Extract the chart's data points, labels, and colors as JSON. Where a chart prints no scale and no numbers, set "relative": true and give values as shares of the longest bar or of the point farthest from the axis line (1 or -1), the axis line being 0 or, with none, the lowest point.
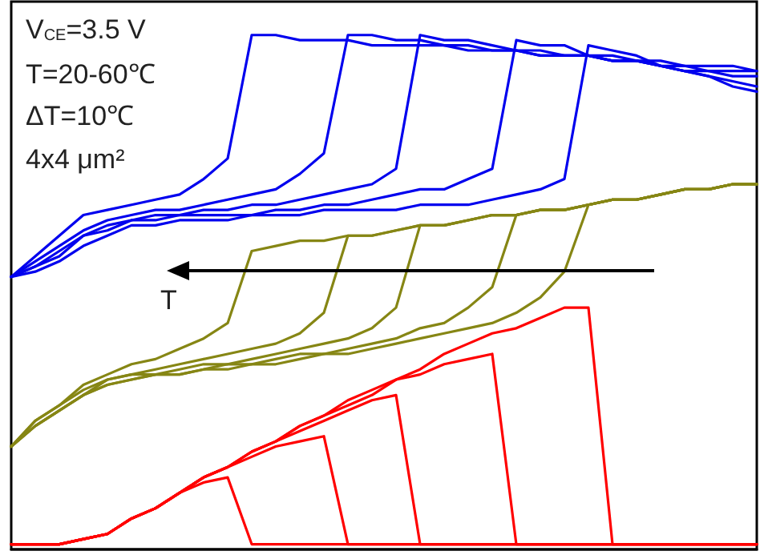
{
  "chart_data": {
    "type": "line",
    "relative": true,
    "marker": "none",
    "tick_labels": false,
    "categories": [
      null,
      null,
      null,
      null,
      null,
      null,
      null,
      null,
      null,
      null,
      null,
      null,
      null,
      null,
      null,
      null,
      null,
      null,
      null,
      null,
      null,
      null,
      null,
      null,
      null,
      null,
      null,
      null,
      null,
      null,
      null,
      null
    ],
    "series": [
      {
        "color": "#0000ee",
        "values": [
          0.53,
          0.57,
          0.61,
          0.65,
          0.66,
          0.67,
          0.68,
          0.69,
          0.72,
          0.76,
          1.0,
          1.0,
          0.99,
          0.99,
          0.99,
          0.98,
          0.98,
          0.98,
          0.98,
          0.97,
          0.97,
          0.97,
          0.96,
          0.96,
          0.96,
          0.95,
          0.95,
          0.95,
          0.94,
          0.94,
          0.94,
          0.93
        ]
      },
      {
        "color": "#0000ee",
        "values": [
          0.53,
          0.56,
          0.59,
          0.62,
          0.64,
          0.65,
          0.66,
          0.66,
          0.67,
          0.68,
          0.69,
          0.7,
          0.73,
          0.77,
          1.0,
          1.0,
          0.99,
          0.99,
          0.98,
          0.98,
          0.97,
          0.97,
          0.96,
          0.96,
          0.96,
          0.95,
          0.95,
          0.94,
          0.94,
          0.93,
          0.93,
          0.93
        ]
      },
      {
        "color": "#0000ee",
        "values": [
          0.53,
          0.55,
          0.58,
          0.61,
          0.63,
          0.64,
          0.65,
          0.65,
          0.66,
          0.66,
          0.67,
          0.67,
          0.68,
          0.69,
          0.7,
          0.71,
          0.74,
          1.0,
          0.99,
          0.99,
          0.98,
          0.97,
          0.97,
          0.96,
          0.96,
          0.95,
          0.95,
          0.94,
          0.93,
          0.93,
          0.92,
          0.92
        ]
      },
      {
        "color": "#0000ee",
        "values": [
          0.53,
          0.55,
          0.57,
          0.61,
          0.62,
          0.64,
          0.64,
          0.65,
          0.65,
          0.65,
          0.65,
          0.66,
          0.66,
          0.67,
          0.67,
          0.68,
          0.69,
          0.7,
          0.7,
          0.72,
          0.74,
          0.99,
          0.98,
          0.98,
          0.96,
          0.96,
          0.95,
          0.94,
          0.93,
          0.92,
          0.91,
          0.9
        ]
      },
      {
        "color": "#0000ee",
        "values": [
          0.53,
          0.54,
          0.56,
          0.59,
          0.61,
          0.63,
          0.63,
          0.64,
          0.64,
          0.64,
          0.65,
          0.65,
          0.65,
          0.66,
          0.66,
          0.66,
          0.66,
          0.67,
          0.67,
          0.67,
          0.68,
          0.69,
          0.7,
          0.72,
          0.98,
          0.97,
          0.96,
          0.94,
          0.93,
          0.92,
          0.9,
          0.89
        ]
      },
      {
        "color": "#868614",
        "values": [
          0.2,
          0.25,
          0.28,
          0.32,
          0.34,
          0.36,
          0.37,
          0.39,
          0.41,
          0.44,
          0.58,
          0.59,
          0.6,
          0.6,
          0.61,
          0.61,
          0.62,
          0.63,
          0.63,
          0.64,
          0.65,
          0.65,
          0.66,
          0.66,
          0.67,
          0.68,
          0.68,
          0.69,
          0.7,
          0.7,
          0.71,
          0.71
        ]
      },
      {
        "color": "#868614",
        "values": [
          0.2,
          0.25,
          0.28,
          0.31,
          0.33,
          0.34,
          0.35,
          0.36,
          0.37,
          0.38,
          0.39,
          0.4,
          0.42,
          0.46,
          0.61,
          0.61,
          0.62,
          0.63,
          0.63,
          0.64,
          0.65,
          0.65,
          0.66,
          0.66,
          0.67,
          0.68,
          0.68,
          0.69,
          0.7,
          0.7,
          0.71,
          0.71
        ]
      },
      {
        "color": "#868614",
        "values": [
          0.2,
          0.24,
          0.27,
          0.3,
          0.33,
          0.34,
          0.34,
          0.35,
          0.36,
          0.36,
          0.37,
          0.38,
          0.39,
          0.4,
          0.41,
          0.43,
          0.47,
          0.63,
          0.63,
          0.64,
          0.65,
          0.65,
          0.66,
          0.66,
          0.67,
          0.68,
          0.68,
          0.69,
          0.7,
          0.7,
          0.71,
          0.71
        ]
      },
      {
        "color": "#868614",
        "values": [
          0.2,
          0.24,
          0.27,
          0.3,
          0.32,
          0.33,
          0.34,
          0.34,
          0.35,
          0.36,
          0.36,
          0.37,
          0.38,
          0.38,
          0.39,
          0.4,
          0.41,
          0.43,
          0.44,
          0.47,
          0.51,
          0.65,
          0.66,
          0.66,
          0.67,
          0.68,
          0.68,
          0.69,
          0.7,
          0.7,
          0.71,
          0.71
        ]
      },
      {
        "color": "#868614",
        "values": [
          0.2,
          0.24,
          0.27,
          0.3,
          0.32,
          0.33,
          0.34,
          0.34,
          0.35,
          0.35,
          0.36,
          0.36,
          0.37,
          0.38,
          0.38,
          0.39,
          0.4,
          0.41,
          0.42,
          0.43,
          0.44,
          0.46,
          0.49,
          0.54,
          0.67,
          0.68,
          0.68,
          0.69,
          0.7,
          0.7,
          0.71,
          0.71
        ]
      },
      {
        "color": "#ff0000",
        "values": [
          0.01,
          0.01,
          0.01,
          0.02,
          0.03,
          0.06,
          0.08,
          0.11,
          0.13,
          0.14,
          0.01,
          0.01,
          0.01,
          0.01,
          0.01,
          0.01,
          0.01,
          0.01,
          0.01,
          0.01,
          0.01,
          0.01,
          0.01,
          0.01,
          0.01,
          0.01,
          0.01,
          0.01,
          0.01,
          0.01,
          0.01,
          0.01
        ]
      },
      {
        "color": "#ff0000",
        "values": [
          0.01,
          0.01,
          0.01,
          0.02,
          0.03,
          0.06,
          0.08,
          0.11,
          0.14,
          0.16,
          0.18,
          0.2,
          0.21,
          0.22,
          0.01,
          0.01,
          0.01,
          0.01,
          0.01,
          0.01,
          0.01,
          0.01,
          0.01,
          0.01,
          0.01,
          0.01,
          0.01,
          0.01,
          0.01,
          0.01,
          0.01,
          0.01
        ]
      },
      {
        "color": "#ff0000",
        "values": [
          0.01,
          0.01,
          0.01,
          0.02,
          0.03,
          0.06,
          0.08,
          0.11,
          0.14,
          0.16,
          0.19,
          0.21,
          0.23,
          0.25,
          0.27,
          0.29,
          0.3,
          0.01,
          0.01,
          0.01,
          0.01,
          0.01,
          0.01,
          0.01,
          0.01,
          0.01,
          0.01,
          0.01,
          0.01,
          0.01,
          0.01,
          0.01
        ]
      },
      {
        "color": "#ff0000",
        "values": [
          0.01,
          0.01,
          0.01,
          0.02,
          0.03,
          0.06,
          0.08,
          0.11,
          0.14,
          0.16,
          0.19,
          0.21,
          0.24,
          0.26,
          0.28,
          0.3,
          0.33,
          0.34,
          0.36,
          0.37,
          0.38,
          0.01,
          0.01,
          0.01,
          0.01,
          0.01,
          0.01,
          0.01,
          0.01,
          0.01,
          0.01,
          0.01
        ]
      },
      {
        "color": "#ff0000",
        "values": [
          0.01,
          0.01,
          0.01,
          0.02,
          0.03,
          0.06,
          0.08,
          0.11,
          0.14,
          0.16,
          0.19,
          0.21,
          0.24,
          0.26,
          0.29,
          0.31,
          0.33,
          0.35,
          0.38,
          0.4,
          0.42,
          0.43,
          0.45,
          0.47,
          0.47,
          0.01,
          0.01,
          0.01,
          0.01,
          0.01,
          0.01,
          0.01
        ]
      }
    ],
    "annotations": [
      "V$_{CE}$=3.5 V",
      "T=20-60℃",
      "ΔT=10℃",
      "4x4 μm²",
      "T"
    ]
  }
}
